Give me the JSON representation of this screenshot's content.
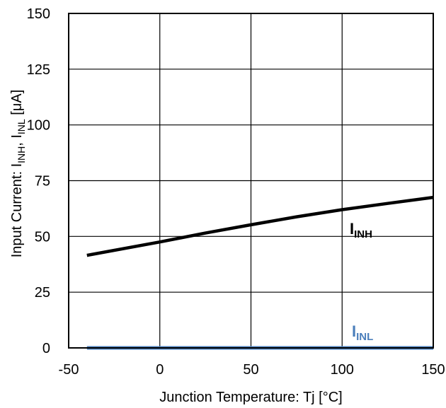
{
  "chart_data": {
    "type": "line",
    "xlabel": "Junction Temperature: Tj [°C]",
    "ylabel": "Input Current: I",
    "ylabel_parts": {
      "main": "Input Current: I",
      "sub1": "INH",
      "sep": ", I",
      "sub2": "INL",
      "unit": " [μA]"
    },
    "xlim": [
      -50,
      150
    ],
    "ylim": [
      0,
      150
    ],
    "xticks": [
      "-50",
      "0",
      "50",
      "100",
      "150"
    ],
    "xtick_values": [
      -50,
      0,
      50,
      100,
      150
    ],
    "yticks": [
      "0",
      "25",
      "50",
      "75",
      "100",
      "125",
      "150"
    ],
    "ytick_values": [
      0,
      25,
      50,
      75,
      100,
      125,
      150
    ],
    "grid": true,
    "series": [
      {
        "name": "I",
        "name_sub": "INH",
        "color": "#000000",
        "x": [
          -40,
          0,
          25,
          50,
          75,
          100,
          125,
          150
        ],
        "y": [
          41.5,
          47.5,
          51.5,
          55.2,
          58.8,
          62,
          64.8,
          67.5
        ]
      },
      {
        "name": "I",
        "name_sub": "INL",
        "color": "#4a7ebb",
        "x": [
          -40,
          150
        ],
        "y": [
          0,
          0
        ]
      }
    ]
  }
}
